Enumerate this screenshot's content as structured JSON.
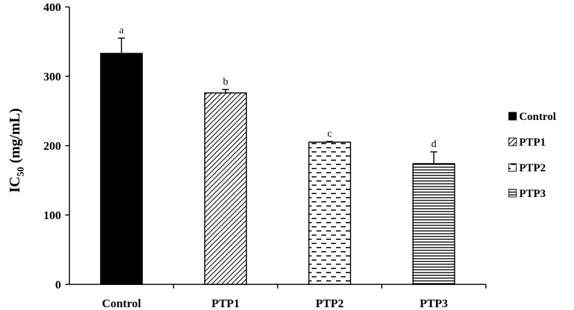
{
  "chart_data": {
    "type": "bar",
    "categories": [
      "Control",
      "PTP1",
      "PTP2",
      "PTP3"
    ],
    "values": [
      333,
      276,
      205,
      174
    ],
    "errors": [
      22,
      5,
      1,
      17
    ],
    "significance_labels": [
      "a",
      "b",
      "c",
      "d"
    ],
    "patterns": [
      "solid",
      "diagonal",
      "dashes",
      "horizontal"
    ],
    "ylabel": "IC",
    "ylabel_sub": "50",
    "ylabel_unit": " (mg/mL)",
    "ylim": [
      0,
      400
    ],
    "yticks": [
      "0",
      "100",
      "200",
      "300",
      "400"
    ],
    "legend": [
      "Control",
      "PTP1",
      "PTP2",
      "PTP3"
    ],
    "legend_position": "right",
    "grid": false
  },
  "colors": {
    "bar_fill": "#000000",
    "background": "#ffffff"
  }
}
